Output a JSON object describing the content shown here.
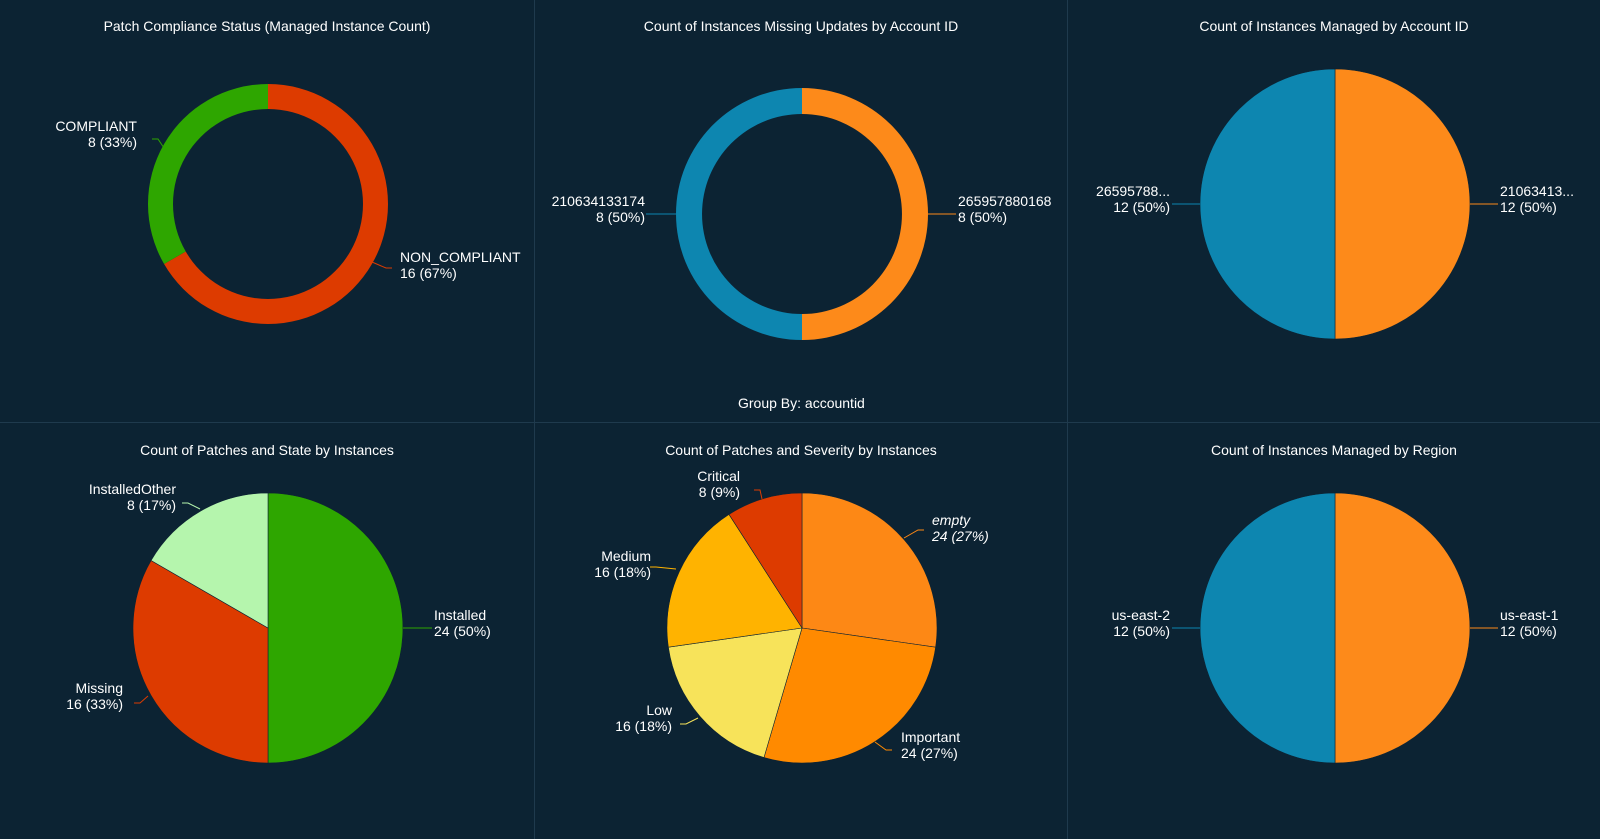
{
  "charts": [
    {
      "title": "Patch Compliance Status (Managed Instance Count)",
      "chart_data": {
        "type": "pie",
        "donut": true,
        "slices": [
          {
            "label": "NON_COMPLIANT",
            "value": 16,
            "pct": "67%",
            "color": "#dd3b00",
            "display": "16 (67%)"
          },
          {
            "label": "COMPLIANT",
            "value": 8,
            "pct": "33%",
            "color": "#2ea600",
            "display": "8 (33%)"
          }
        ]
      }
    },
    {
      "title": "Count of Instances Missing Updates by Account ID",
      "chart_data": {
        "type": "pie",
        "donut": true,
        "slices": [
          {
            "label": "265957880168",
            "value": 8,
            "pct": "50%",
            "color": "#fd8a1a",
            "display": "8 (50%)"
          },
          {
            "label": "210634133174",
            "value": 8,
            "pct": "50%",
            "color": "#0d86b0",
            "display": "8 (50%)"
          }
        ]
      },
      "footer": "Group By: accountid"
    },
    {
      "title": "Count of Instances Managed by Account ID",
      "chart_data": {
        "type": "pie",
        "donut": false,
        "slices": [
          {
            "label": "21063413...",
            "value": 12,
            "pct": "50%",
            "color": "#fd8a1a",
            "display": "12 (50%)"
          },
          {
            "label": "26595788...",
            "value": 12,
            "pct": "50%",
            "color": "#0d86b0",
            "display": "12 (50%)"
          }
        ]
      }
    },
    {
      "title": "Count of Patches and State by Instances",
      "chart_data": {
        "type": "pie",
        "donut": false,
        "slices": [
          {
            "label": "Installed",
            "value": 24,
            "pct": "50%",
            "color": "#2ea600",
            "display": "24 (50%)"
          },
          {
            "label": "Missing",
            "value": 16,
            "pct": "33%",
            "color": "#dd3b00",
            "display": "16 (33%)"
          },
          {
            "label": "InstalledOther",
            "value": 8,
            "pct": "17%",
            "color": "#b5f5ad",
            "display": "8 (17%)"
          }
        ]
      }
    },
    {
      "title": "Count of Patches and Severity by Instances",
      "chart_data": {
        "type": "pie",
        "donut": false,
        "slices": [
          {
            "label": "empty",
            "value": 24,
            "pct": "27%",
            "color": "#fd8815",
            "display": "24 (27%)",
            "italic": true
          },
          {
            "label": "Important",
            "value": 24,
            "pct": "27%",
            "color": "#ff8a00",
            "display": "24 (27%)"
          },
          {
            "label": "Low",
            "value": 16,
            "pct": "18%",
            "color": "#f7e35a",
            "display": "16 (18%)"
          },
          {
            "label": "Medium",
            "value": 16,
            "pct": "18%",
            "color": "#ffb300",
            "display": "16 (18%)"
          },
          {
            "label": "Critical",
            "value": 8,
            "pct": "9%",
            "color": "#dd3b00",
            "display": "8 (9%)"
          }
        ]
      }
    },
    {
      "title": "Count of Instances Managed by Region",
      "chart_data": {
        "type": "pie",
        "donut": false,
        "slices": [
          {
            "label": "us-east-1",
            "value": 12,
            "pct": "50%",
            "color": "#fd8a1a",
            "display": "12 (50%)"
          },
          {
            "label": "us-east-2",
            "value": 12,
            "pct": "50%",
            "color": "#0d86b0",
            "display": "12 (50%)"
          }
        ]
      }
    }
  ]
}
